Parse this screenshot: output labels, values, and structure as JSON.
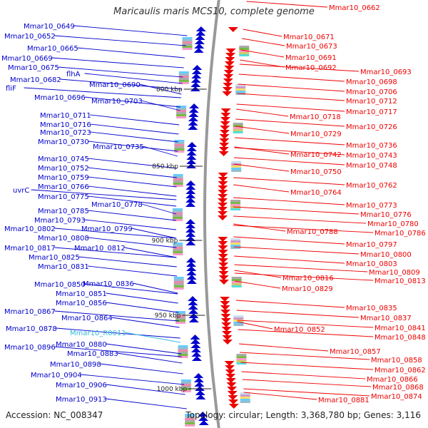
{
  "header": {
    "title": "Maricaulis maris MCS10, complete genome"
  },
  "footer": {
    "accession": "Accession: NC_008347",
    "summary": "Topology: circular; Length: 3,368,780 bp; Genes: 3,116"
  },
  "colors": {
    "left_strand": "#0000cc",
    "right_strand": "#ee0000",
    "rna": "#33bbdd",
    "backbone": "#999999"
  },
  "scale_labels": [
    "800 kbp",
    "850 kbp",
    "900 kbp",
    "950 kbp",
    "1000 kbp"
  ],
  "left_labels": [
    "Mmar10_0649",
    "Mmar10_0652",
    "Mmar10_0665",
    "Mmar10_0669",
    "Mmar10_0675",
    "flhA",
    "Mmar10_0682",
    "fliF",
    "Mmar10_0690",
    "Mmar10_0696",
    "Mmar10_0703",
    "Mmar10_0711",
    "Mmar10_0716",
    "Mmar10_0723",
    "Mmar10_0730",
    "Mmar10_0735",
    "Mmar10_0745",
    "Mmar10_0752",
    "Mmar10_0759",
    "uvrC",
    "Mmar10_0766",
    "Mmar10_0775",
    "Mmar10_0778",
    "Mmar10_0785",
    "Mmar10_0793",
    "Mmar10_0802",
    "Mmar10_0799",
    "Mmar10_0808",
    "Mmar10_0817",
    "Mmar10_0812",
    "Mmar10_0825",
    "Mmar10_0831",
    "Mmar10_0850",
    "Mmar10_0836",
    "Mmar10_0851",
    "Mmar10_0856",
    "Mmar10_0867",
    "Mmar10_0864",
    "Mmar10_0878",
    "Mmar10_R0011",
    "Mmar10_0896",
    "Mmar10_0880",
    "Mmar10_0883",
    "Mmar10_0898",
    "Mmar10_0904",
    "Mmar10_0906",
    "Mmar10_0913"
  ],
  "right_labels": [
    "Mmar10_0662",
    "Mmar10_0671",
    "Mmar10_0673",
    "Mmar10_0691",
    "Mmar10_0692",
    "Mmar10_0693",
    "Mmar10_0698",
    "Mmar10_0706",
    "Mmar10_0712",
    "Mmar10_0717",
    "Mmar10_0718",
    "Mmar10_0726",
    "Mmar10_0729",
    "Mmar10_0736",
    "Mmar10_0742",
    "Mmar10_0743",
    "Mmar10_0748",
    "Mmar10_0750",
    "Mmar10_0762",
    "Mmar10_0764",
    "Mmar10_0773",
    "Mmar10_0776",
    "Mmar10_0780",
    "Mmar10_0788",
    "Mmar10_0786",
    "Mmar10_0797",
    "Mmar10_0800",
    "Mmar10_0803",
    "Mmar10_0809",
    "Mmar10_0816",
    "Mmar10_0813",
    "Mmar10_0829",
    "Mmar10_0835",
    "Mmar10_0837",
    "Mmar10_0852",
    "Mmar10_0841",
    "Mmar10_0848",
    "Mmar10_0857",
    "Mmar10_0858",
    "Mmar10_0862",
    "Mmar10_0866",
    "Mmar10_0868",
    "Mmar10_0881",
    "Mmar10_0874"
  ]
}
